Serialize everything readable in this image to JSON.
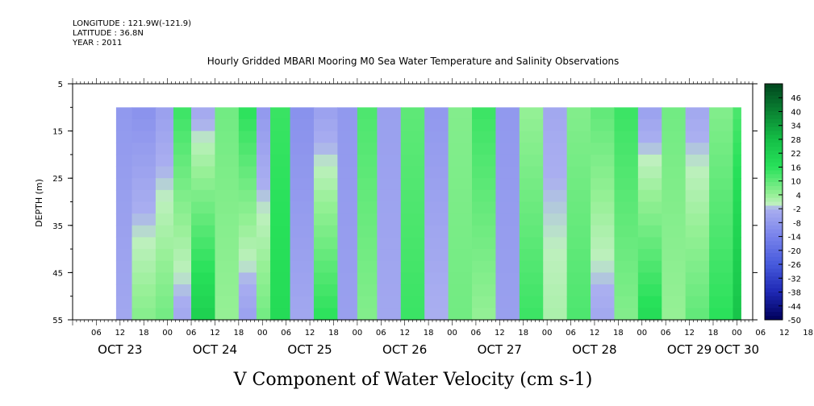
{
  "meta": {
    "longitude": "LONGITUDE : 121.9W(-121.9)",
    "latitude": "LATITUDE : 36.8N",
    "year": "YEAR : 2011"
  },
  "chart_data": {
    "type": "heatmap",
    "title": "Hourly Gridded MBARI Mooring M0 Sea Water Temperature and Salinity Observations",
    "subtitle": "V Component of Water Velocity (cm s-1)",
    "ylabel": "DEPTH (m)",
    "xlabel": "",
    "y_ticks": [
      5,
      15,
      25,
      35,
      45,
      55
    ],
    "ylim": [
      55,
      5
    ],
    "y_data_range": [
      10,
      55
    ],
    "x_range_hours": [
      "2011-10-23 00:00",
      "2011-10-30 04:00"
    ],
    "x_data_start": "2011-10-23 11:00",
    "x_hour_ticks": [
      "06",
      "12",
      "18",
      "00",
      "06",
      "12",
      "18",
      "00",
      "06",
      "12",
      "18",
      "00",
      "06",
      "12",
      "18",
      "00",
      "06",
      "12",
      "18",
      "00",
      "06",
      "12",
      "18",
      "00",
      "06",
      "12",
      "18",
      "00",
      "06",
      "12",
      "18",
      "00"
    ],
    "x_day_labels": [
      "OCT 23",
      "OCT 24",
      "OCT 25",
      "OCT 26",
      "OCT 27",
      "OCT 28",
      "OCT 29",
      "OCT 30"
    ],
    "colorbar": {
      "ticks": [
        "46",
        "40",
        "34",
        "28",
        "22",
        "16",
        "10",
        "4",
        "-2",
        "-8",
        "-14",
        "-20",
        "-26",
        "-32",
        "-38",
        "-44",
        "-50"
      ],
      "range": [
        -50,
        52
      ]
    },
    "approx_columns": [
      {
        "time": "2011-10-23 12:00",
        "v_shallow": -8,
        "v_deep": -4
      },
      {
        "time": "2011-10-23 18:00",
        "v_shallow": -10,
        "v_deep": 6
      },
      {
        "time": "2011-10-24 00:00",
        "v_shallow": -6,
        "v_deep": 8
      },
      {
        "time": "2011-10-24 03:00",
        "v_shallow": 14,
        "v_deep": -4
      },
      {
        "time": "2011-10-24 09:00",
        "v_shallow": -4,
        "v_deep": 22
      },
      {
        "time": "2011-10-24 15:00",
        "v_shallow": 8,
        "v_deep": 4
      },
      {
        "time": "2011-10-24 21:00",
        "v_shallow": 16,
        "v_deep": -6
      },
      {
        "time": "2011-10-25 00:00",
        "v_shallow": -8,
        "v_deep": 8
      },
      {
        "time": "2011-10-25 04:00",
        "v_shallow": 14,
        "v_deep": 18
      },
      {
        "time": "2011-10-25 10:00",
        "v_shallow": -10,
        "v_deep": -4
      },
      {
        "time": "2011-10-25 16:00",
        "v_shallow": -6,
        "v_deep": 16
      },
      {
        "time": "2011-10-25 22:00",
        "v_shallow": -8,
        "v_deep": -6
      },
      {
        "time": "2011-10-26 02:00",
        "v_shallow": 12,
        "v_deep": 6
      },
      {
        "time": "2011-10-26 08:00",
        "v_shallow": -6,
        "v_deep": -4
      },
      {
        "time": "2011-10-26 14:00",
        "v_shallow": 10,
        "v_deep": 14
      },
      {
        "time": "2011-10-26 20:00",
        "v_shallow": -8,
        "v_deep": -2
      },
      {
        "time": "2011-10-27 02:00",
        "v_shallow": 6,
        "v_deep": 8
      },
      {
        "time": "2011-10-27 08:00",
        "v_shallow": 14,
        "v_deep": 4
      },
      {
        "time": "2011-10-27 14:00",
        "v_shallow": -8,
        "v_deep": -6
      },
      {
        "time": "2011-10-27 20:00",
        "v_shallow": 4,
        "v_deep": 14
      },
      {
        "time": "2011-10-28 02:00",
        "v_shallow": -4,
        "v_deep": 2
      },
      {
        "time": "2011-10-28 08:00",
        "v_shallow": 6,
        "v_deep": 12
      },
      {
        "time": "2011-10-28 14:00",
        "v_shallow": 10,
        "v_deep": -4
      },
      {
        "time": "2011-10-28 20:00",
        "v_shallow": 14,
        "v_deep": 6
      },
      {
        "time": "2011-10-29 02:00",
        "v_shallow": -6,
        "v_deep": 18
      },
      {
        "time": "2011-10-29 08:00",
        "v_shallow": 8,
        "v_deep": 4
      },
      {
        "time": "2011-10-29 14:00",
        "v_shallow": -4,
        "v_deep": 10
      },
      {
        "time": "2011-10-29 20:00",
        "v_shallow": 6,
        "v_deep": 16
      },
      {
        "time": "2011-10-30 02:00",
        "v_shallow": 12,
        "v_deep": 26
      }
    ],
    "legend": "colorbar right",
    "grid": false
  },
  "colors": {
    "negative_strong": "#000066",
    "negative_weak": "#a0a8f0",
    "positive_weak": "#b0f0b0",
    "positive_strong": "#004d1a"
  }
}
